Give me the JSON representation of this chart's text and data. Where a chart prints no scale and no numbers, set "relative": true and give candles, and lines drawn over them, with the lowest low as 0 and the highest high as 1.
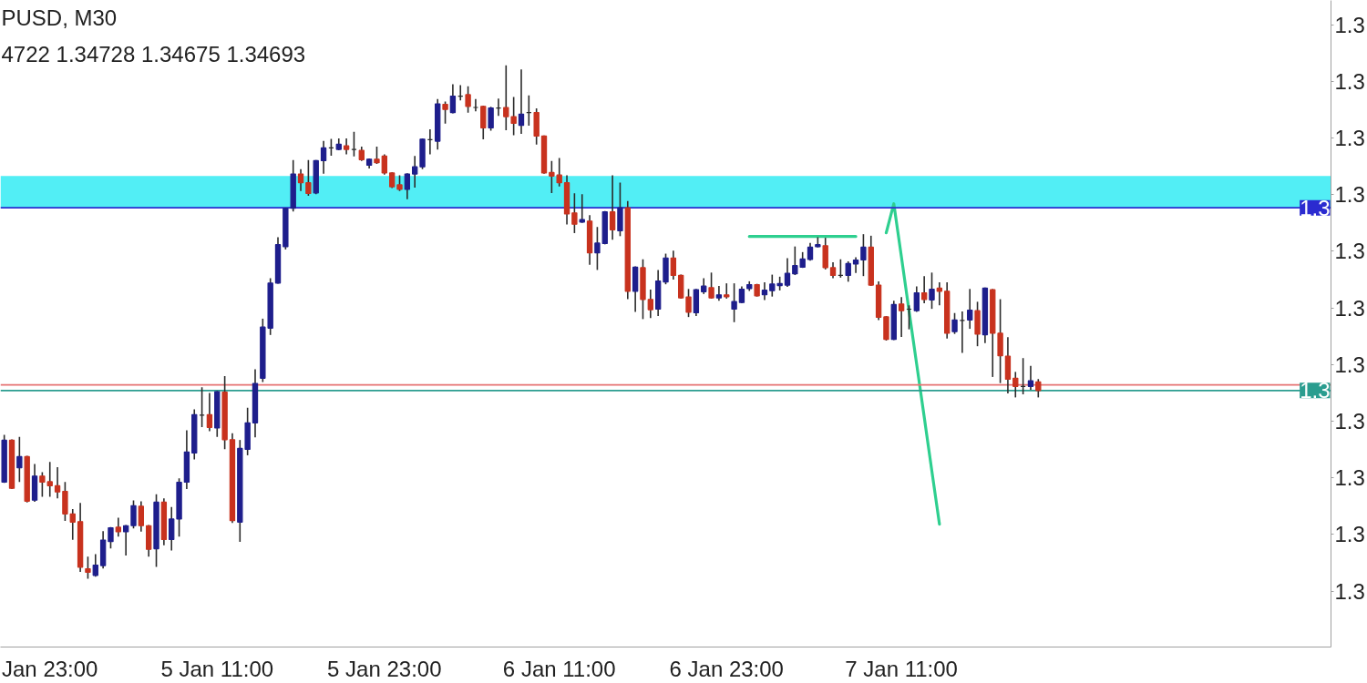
{
  "chart_data": {
    "type": "candlestick",
    "title": "PUSD, M30",
    "subtitle": "4722 1.34728 1.34675 1.34693",
    "relative": true,
    "categories": [
      null,
      null,
      null,
      null,
      null,
      null,
      "Jan 23:00",
      null,
      null,
      null,
      null,
      null,
      null,
      null,
      null,
      null,
      null,
      null,
      null,
      null,
      null,
      null,
      null,
      null,
      null,
      null,
      null,
      null,
      "5 Jan 11:00",
      null,
      null,
      null,
      null,
      null,
      null,
      null,
      null,
      null,
      null,
      null,
      null,
      null,
      null,
      null,
      null,
      null,
      null,
      null,
      null,
      null,
      "5 Jan 23:00",
      null,
      null,
      null,
      null,
      null,
      null,
      null,
      null,
      null,
      null,
      null,
      null,
      null,
      null,
      null,
      null,
      null,
      null,
      null,
      null,
      null,
      null,
      "6 Jan 11:00",
      null,
      null,
      null,
      null,
      null,
      null,
      null,
      null,
      null,
      null,
      null,
      null,
      null,
      null,
      null,
      null,
      null,
      null,
      null,
      null,
      null,
      "6 Jan 23:00",
      null,
      null,
      null,
      null,
      null,
      null,
      null,
      null,
      null,
      null,
      null,
      null,
      null,
      null,
      null,
      null,
      null,
      null,
      null,
      null,
      null,
      null,
      "7 Jan 11:00",
      null,
      null,
      null,
      null,
      null,
      null,
      null,
      null,
      null,
      null,
      null,
      null,
      null,
      null,
      null,
      null,
      null,
      null,
      null,
      null,
      null,
      null,
      null,
      null,
      null,
      null,
      null,
      null,
      null,
      null,
      null,
      null,
      null,
      null,
      null,
      null,
      null,
      null,
      null,
      null,
      null,
      null,
      null,
      null,
      null,
      null,
      null,
      null,
      null,
      null,
      null,
      null,
      null,
      null,
      null,
      null
    ],
    "ohlc": [
      [
        0.187,
        0.278,
        0.187,
        0.269
      ],
      [
        0.269,
        0.269,
        0.175,
        0.175
      ],
      [
        0.215,
        0.274,
        0.189,
        0.237
      ],
      [
        0.237,
        0.237,
        0.149,
        0.15
      ],
      [
        0.152,
        0.221,
        0.15,
        0.199
      ],
      [
        0.199,
        0.205,
        0.16,
        0.187
      ],
      [
        0.188,
        0.225,
        0.16,
        0.18
      ],
      [
        0.18,
        0.215,
        0.157,
        0.168
      ],
      [
        0.169,
        0.186,
        0.113,
        0.125
      ],
      [
        0.125,
        0.133,
        0.076,
        0.109
      ],
      [
        0.11,
        0.145,
        0.013,
        0.021
      ],
      [
        0.018,
        0.04,
        0,
        0.011
      ],
      [
        0.005,
        0.045,
        0.004,
        0.025
      ],
      [
        0.024,
        0.09,
        0.02,
        0.074
      ],
      [
        0.071,
        0.098,
        0.059,
        0.098
      ],
      [
        0.099,
        0.116,
        0.082,
        0.09
      ],
      [
        0.09,
        0.102,
        0.045,
        0.102
      ],
      [
        0.102,
        0.15,
        0.098,
        0.141
      ],
      [
        0.14,
        0.148,
        0.092,
        0.102
      ],
      [
        0.102,
        0.102,
        0.043,
        0.056
      ],
      [
        0.057,
        0.162,
        0.023,
        0.148
      ],
      [
        0.148,
        0.154,
        0.065,
        0.075
      ],
      [
        0.075,
        0.137,
        0.055,
        0.115
      ],
      [
        0.115,
        0.193,
        0.082,
        0.187
      ],
      [
        0.187,
        0.287,
        0.175,
        0.246
      ],
      [
        0.244,
        0.328,
        0.233,
        0.319
      ],
      [
        0.318,
        0.371,
        0.296,
        0.318
      ],
      [
        0.319,
        0.36,
        0.288,
        0.294
      ],
      [
        0.293,
        0.364,
        0.277,
        0.364
      ],
      [
        0.363,
        0.393,
        0.253,
        0.27
      ],
      [
        0.27,
        0.281,
        0.109,
        0.112
      ],
      [
        0.109,
        0.268,
        0.072,
        0.253
      ],
      [
        0.251,
        0.331,
        0.241,
        0.303
      ],
      [
        0.303,
        0.406,
        0.276,
        0.38
      ],
      [
        0.39,
        0.505,
        0.384,
        0.49
      ],
      [
        0.488,
        0.584,
        0.476,
        0.576
      ],
      [
        0.576,
        0.664,
        0.576,
        0.651
      ],
      [
        0.647,
        0.722,
        0.643,
        0.722
      ],
      [
        0.722,
        0.815,
        0.717,
        0.789
      ],
      [
        0.789,
        0.797,
        0.757,
        0.772
      ],
      [
        0.772,
        0.815,
        0.748,
        0.751
      ],
      [
        0.752,
        0.815,
        0.751,
        0.815
      ],
      [
        0.815,
        0.852,
        0.791,
        0.84
      ],
      [
        0.84,
        0.856,
        0.826,
        0.84
      ],
      [
        0.837,
        0.857,
        0.837,
        0.847
      ],
      [
        0.844,
        0.857,
        0.829,
        0.837
      ],
      [
        0.837,
        0.87,
        0.825,
        0.837
      ],
      [
        0.835,
        0.841,
        0.816,
        0.817
      ],
      [
        0.806,
        0.818,
        0.801,
        0.818
      ],
      [
        0.818,
        0.841,
        0.81,
        0.811
      ],
      [
        0.824,
        0.826,
        0.789,
        0.791
      ],
      [
        0.791,
        0.791,
        0.763,
        0.764
      ],
      [
        0.768,
        0.785,
        0.757,
        0.759
      ],
      [
        0.759,
        0.789,
        0.741,
        0.789
      ],
      [
        0.789,
        0.823,
        0.764,
        0.803
      ],
      [
        0.803,
        0.857,
        0.8,
        0.857
      ],
      [
        0.856,
        0.875,
        0.829,
        0.856
      ],
      [
        0.853,
        0.934,
        0.838,
        0.926
      ],
      [
        0.925,
        0.929,
        0.889,
        0.915
      ],
      [
        0.909,
        0.963,
        0.909,
        0.941
      ],
      [
        0.941,
        0.961,
        0.934,
        0.941
      ],
      [
        0.944,
        0.959,
        0.91,
        0.921
      ],
      [
        0.919,
        0.934,
        0.913,
        0.919
      ],
      [
        0.921,
        0.921,
        0.858,
        0.879
      ],
      [
        0.879,
        0.919,
        0.875,
        0.918
      ],
      [
        0.918,
        0.935,
        0.904,
        0.918
      ],
      [
        0.919,
        1,
        0.876,
        0.901
      ],
      [
        0.901,
        0.938,
        0.866,
        0.888
      ],
      [
        0.884,
        0.992,
        0.869,
        0.906
      ],
      [
        0.909,
        0.941,
        0.885,
        0.909
      ],
      [
        0.909,
        0.916,
        0.848,
        0.863
      ],
      [
        0.863,
        0.863,
        0.791,
        0.791
      ],
      [
        0.792,
        0.813,
        0.753,
        0.785
      ],
      [
        0.787,
        0.819,
        0.766,
        0.772
      ],
      [
        0.772,
        0.785,
        0.692,
        0.711
      ],
      [
        0.713,
        0.75,
        0.675,
        0.691
      ],
      [
        0.695,
        0.748,
        0.695,
        0.7
      ],
      [
        0.697,
        0.707,
        0.613,
        0.635
      ],
      [
        0.635,
        0.684,
        0.603,
        0.654
      ],
      [
        0.653,
        0.715,
        0.653,
        0.715
      ],
      [
        0.715,
        0.785,
        0.662,
        0.68
      ],
      [
        0.678,
        0.771,
        0.669,
        0.723
      ],
      [
        0.723,
        0.735,
        0.546,
        0.56
      ],
      [
        0.56,
        0.607,
        0.521,
        0.607
      ],
      [
        0.606,
        0.621,
        0.507,
        0.544
      ],
      [
        0.544,
        0.562,
        0.509,
        0.524
      ],
      [
        0.525,
        0.6,
        0.513,
        0.58
      ],
      [
        0.578,
        0.632,
        0.575,
        0.625
      ],
      [
        0.625,
        0.638,
        0.584,
        0.591
      ],
      [
        0.591,
        0.591,
        0.547,
        0.547
      ],
      [
        0.549,
        0.563,
        0.511,
        0.519
      ],
      [
        0.518,
        0.563,
        0.513,
        0.563
      ],
      [
        0.559,
        0.584,
        0.556,
        0.57
      ],
      [
        0.567,
        0.595,
        0.547,
        0.547
      ],
      [
        0.547,
        0.569,
        0.543,
        0.553
      ],
      [
        0.553,
        0.574,
        0.547,
        0.549
      ],
      [
        0.525,
        0.574,
        0.501,
        0.54
      ],
      [
        0.538,
        0.568,
        0.538,
        0.564
      ],
      [
        0.565,
        0.578,
        0.562,
        0.573
      ],
      [
        0.573,
        0.573,
        0.551,
        0.551
      ],
      [
        0.553,
        0.576,
        0.544,
        0.562
      ],
      [
        0.561,
        0.591,
        0.551,
        0.574
      ],
      [
        0.571,
        0.587,
        0.563,
        0.575
      ],
      [
        0.572,
        0.623,
        0.57,
        0.595
      ],
      [
        0.594,
        0.646,
        0.593,
        0.61
      ],
      [
        0.607,
        0.635,
        0.607,
        0.623
      ],
      [
        0.622,
        0.653,
        0.621,
        0.646
      ],
      [
        0.647,
        0.664,
        0.647,
        0.651
      ],
      [
        0.649,
        0.663,
        0.604,
        0.606
      ],
      [
        0.606,
        0.615,
        0.587,
        0.591
      ],
      [
        0.591,
        0.621,
        0.588,
        0.591
      ],
      [
        0.591,
        0.617,
        0.58,
        0.614
      ],
      [
        0.613,
        0.625,
        0.597,
        0.621
      ],
      [
        0.621,
        0.67,
        0.591,
        0.646
      ],
      [
        0.646,
        0.667,
        0.572,
        0.572
      ],
      [
        0.572,
        0.578,
        0.505,
        0.509
      ],
      [
        0.51,
        0.51,
        0.465,
        0.466
      ],
      [
        0.466,
        0.54,
        0.466,
        0.534
      ],
      [
        0.535,
        0.547,
        0.472,
        0.522
      ],
      [
        0.525,
        0.531,
        0.487,
        0.525
      ],
      [
        0.522,
        0.568,
        0.521,
        0.557
      ],
      [
        0.557,
        0.588,
        0.538,
        0.544
      ],
      [
        0.543,
        0.595,
        0.527,
        0.564
      ],
      [
        0.566,
        0.576,
        0.534,
        0.56
      ],
      [
        0.56,
        0.576,
        0.469,
        0.478
      ],
      [
        0.481,
        0.516,
        0.478,
        0.504
      ],
      [
        0.503,
        0.519,
        0.441,
        0.503
      ],
      [
        0.504,
        0.563,
        0.488,
        0.523
      ],
      [
        0.522,
        0.538,
        0.454,
        0.476
      ],
      [
        0.475,
        0.566,
        0.46,
        0.566
      ],
      [
        0.563,
        0.563,
        0.394,
        0.478
      ],
      [
        0.478,
        0.543,
        0.382,
        0.434
      ],
      [
        0.433,
        0.469,
        0.362,
        0.388
      ],
      [
        0.39,
        0.401,
        0.354,
        0.374
      ],
      [
        0.374,
        0.428,
        0.36,
        0.374
      ],
      [
        0.374,
        0.413,
        0.369,
        0.385
      ],
      [
        0.383,
        0.387,
        0.354,
        0.366
      ],
      null,
      null,
      null,
      null,
      null,
      null,
      null,
      null,
      null,
      null,
      null,
      null,
      null,
      null,
      null,
      null,
      null,
      null,
      null,
      null,
      null,
      null,
      null,
      null,
      null,
      null,
      null,
      null,
      null,
      null,
      null,
      null,
      null,
      null,
      null,
      null,
      null,
      null
    ],
    "colors": [
      "#1e1e8c",
      "#c8321e",
      "#1e1e8c",
      "#c8321e",
      "#1e1e8c",
      "#c8321e",
      "#c8321e",
      "#c8321e",
      "#c8321e",
      "#c8321e",
      "#c8321e",
      "#c8321e",
      "#1e1e8c",
      "#1e1e8c",
      "#1e1e8c",
      "#c8321e",
      "#1e1e8c",
      "#1e1e8c",
      "#c8321e",
      "#c8321e",
      "#1e1e8c",
      "#c8321e",
      "#1e1e8c",
      "#1e1e8c",
      "#1e1e8c",
      "#1e1e8c",
      "#2b2b2b",
      "#c8321e",
      "#1e1e8c",
      "#c8321e",
      "#c8321e",
      "#1e1e8c",
      "#1e1e8c",
      "#1e1e8c",
      "#1e1e8c",
      "#1e1e8c",
      "#1e1e8c",
      "#1e1e8c",
      "#1e1e8c",
      "#c8321e",
      "#c8321e",
      "#1e1e8c",
      "#1e1e8c",
      "#2b2b2b",
      "#1e1e8c",
      "#c8321e",
      "#2b2b2b",
      "#c8321e",
      "#1e1e8c",
      "#c8321e",
      "#c8321e",
      "#c8321e",
      "#c8321e",
      "#1e1e8c",
      "#1e1e8c",
      "#1e1e8c",
      "#2b2b2b",
      "#1e1e8c",
      "#c8321e",
      "#1e1e8c",
      "#2b2b2b",
      "#c8321e",
      "#2b2b2b",
      "#c8321e",
      "#1e1e8c",
      "#2b2b2b",
      "#c8321e",
      "#c8321e",
      "#1e1e8c",
      "#2b2b2b",
      "#c8321e",
      "#c8321e",
      "#c8321e",
      "#c8321e",
      "#c8321e",
      "#c8321e",
      "#1e1e8c",
      "#c8321e",
      "#1e1e8c",
      "#1e1e8c",
      "#c8321e",
      "#1e1e8c",
      "#c8321e",
      "#1e1e8c",
      "#c8321e",
      "#c8321e",
      "#1e1e8c",
      "#1e1e8c",
      "#c8321e",
      "#c8321e",
      "#c8321e",
      "#1e1e8c",
      "#1e1e8c",
      "#c8321e",
      "#1e1e8c",
      "#c8321e",
      "#1e1e8c",
      "#1e1e8c",
      "#1e1e8c",
      "#c8321e",
      "#1e1e8c",
      "#1e1e8c",
      "#1e1e8c",
      "#1e1e8c",
      "#1e1e8c",
      "#1e1e8c",
      "#1e1e8c",
      "#1e1e8c",
      "#c8321e",
      "#c8321e",
      "#2b2b2b",
      "#1e1e8c",
      "#1e1e8c",
      "#1e1e8c",
      "#c8321e",
      "#c8321e",
      "#c8321e",
      "#1e1e8c",
      "#c8321e",
      "#2b2b2b",
      "#1e1e8c",
      "#c8321e",
      "#1e1e8c",
      "#c8321e",
      "#c8321e",
      "#1e1e8c",
      "#2b2b2b",
      "#1e1e8c",
      "#c8321e",
      "#1e1e8c",
      "#c8321e",
      "#c8321e",
      "#c8321e",
      "#c8321e",
      "#2b2b2b",
      "#1e1e8c",
      "#c8321e",
      null,
      null,
      null,
      null,
      null,
      null,
      null,
      null,
      null,
      null,
      null,
      null,
      null,
      null,
      null,
      null,
      null,
      null,
      null,
      null,
      null,
      null,
      null,
      null,
      null,
      null,
      null,
      null,
      null,
      null,
      null,
      null,
      null,
      null,
      null,
      null,
      null,
      null
    ],
    "bands": [
      {
        "axis": "y",
        "from": 0.723,
        "to": 0.785,
        "color": "#52eef5"
      }
    ],
    "ref_lines": [
      {
        "axis": "y",
        "value": 0.723,
        "color": "#2b2bd0"
      },
      {
        "axis": "y",
        "value": 0.377,
        "color": "#e57373"
      },
      {
        "axis": "y",
        "value": 0.366,
        "color": "#2a9d8f"
      }
    ],
    "annotations": [
      "1.3",
      "1.3",
      "1.3",
      "1.3",
      "1.3",
      "1.3",
      "1.3",
      "1.3",
      "1.3",
      "1.3",
      "1.3",
      {
        "text": "1.3",
        "y": 0.723
      },
      {
        "text": "1.3",
        "y": 0.366
      }
    ],
    "series": [
      {
        "type": "line",
        "color": "#2ecf8f",
        "values": [
          null,
          null,
          null,
          null,
          null,
          null,
          null,
          null,
          null,
          null,
          null,
          null,
          null,
          null,
          null,
          null,
          null,
          null,
          null,
          null,
          null,
          null,
          null,
          null,
          null,
          null,
          null,
          null,
          null,
          null,
          null,
          null,
          null,
          null,
          null,
          null,
          null,
          null,
          null,
          null,
          null,
          null,
          null,
          null,
          null,
          null,
          null,
          null,
          null,
          null,
          null,
          null,
          null,
          null,
          null,
          null,
          null,
          null,
          null,
          null,
          null,
          null,
          null,
          null,
          null,
          null,
          null,
          null,
          null,
          null,
          null,
          null,
          null,
          null,
          null,
          null,
          null,
          null,
          null,
          null,
          null,
          null,
          null,
          null,
          null,
          null,
          null,
          null,
          null,
          null,
          null,
          null,
          null,
          null,
          null,
          null,
          null,
          null,
          0.667,
          0.667,
          0.667,
          0.667,
          0.667,
          0.667,
          0.667,
          0.667,
          0.667,
          0.667,
          0.667,
          0.667,
          0.667,
          0.667,
          0.667,
          null,
          null,
          null,
          null,
          null,
          null,
          null,
          null,
          null,
          null,
          null,
          null,
          null,
          null,
          null,
          null,
          null,
          null,
          null,
          null,
          null,
          null,
          null,
          null,
          null,
          null,
          null,
          null,
          null,
          null,
          null,
          null,
          null,
          null,
          null,
          null,
          null,
          null,
          null,
          null,
          null,
          null,
          null,
          null,
          null,
          null,
          null,
          null,
          null,
          null,
          null,
          null,
          null,
          null,
          null,
          null,
          null,
          null,
          null,
          null,
          null,
          null
        ]
      },
      {
        "type": "line",
        "color": "#2ecf8f",
        "values": [
          null,
          null,
          null,
          null,
          null,
          null,
          null,
          null,
          null,
          null,
          null,
          null,
          null,
          null,
          null,
          null,
          null,
          null,
          null,
          null,
          null,
          null,
          null,
          null,
          null,
          null,
          null,
          null,
          null,
          null,
          null,
          null,
          null,
          null,
          null,
          null,
          null,
          null,
          null,
          null,
          null,
          null,
          null,
          null,
          null,
          null,
          null,
          null,
          null,
          null,
          null,
          null,
          null,
          null,
          null,
          null,
          null,
          null,
          null,
          null,
          null,
          null,
          null,
          null,
          null,
          null,
          null,
          null,
          null,
          null,
          null,
          null,
          null,
          null,
          null,
          null,
          null,
          null,
          null,
          null,
          null,
          null,
          null,
          null,
          null,
          null,
          null,
          null,
          null,
          null,
          null,
          null,
          null,
          null,
          null,
          null,
          null,
          null,
          null,
          null,
          null,
          null,
          null,
          null,
          null,
          null,
          null,
          null,
          null,
          null,
          null,
          null,
          null,
          null,
          null,
          null,
          0.674,
          0.731,
          0.627,
          0.522,
          0.418,
          0.314,
          0.209,
          0.105,
          null,
          null,
          null,
          null,
          null,
          null,
          null,
          null,
          null,
          null,
          null,
          null,
          null,
          null,
          null,
          null,
          null,
          null,
          null,
          null,
          null,
          null,
          null,
          null,
          null,
          null,
          null,
          null,
          null,
          null,
          null,
          null,
          null,
          null,
          null,
          null,
          null,
          null,
          null,
          null,
          null,
          null,
          null,
          null,
          null,
          null,
          null,
          null,
          null,
          null,
          null
        ]
      }
    ]
  }
}
